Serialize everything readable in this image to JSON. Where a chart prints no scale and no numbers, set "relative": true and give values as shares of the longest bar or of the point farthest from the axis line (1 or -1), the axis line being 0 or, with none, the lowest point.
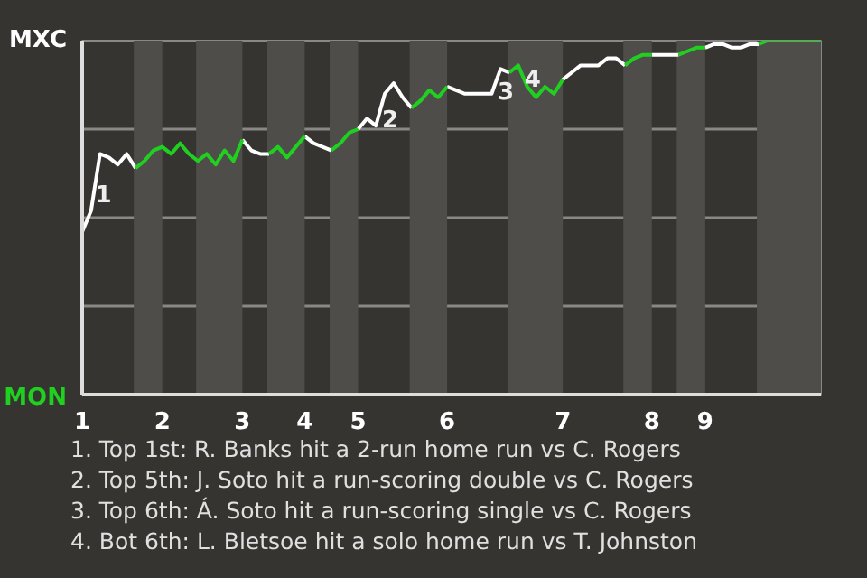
{
  "chart_data": {
    "type": "line",
    "relative": true,
    "grid": "y",
    "line_style": "solid",
    "categories": [
      "1",
      null,
      null,
      null,
      null,
      null,
      null,
      null,
      null,
      "2",
      null,
      null,
      null,
      null,
      null,
      null,
      null,
      null,
      "3",
      null,
      null,
      null,
      null,
      null,
      null,
      "4",
      null,
      null,
      null,
      null,
      null,
      "5",
      null,
      null,
      null,
      null,
      null,
      null,
      null,
      null,
      null,
      "6",
      null,
      null,
      null,
      null,
      null,
      null,
      null,
      null,
      null,
      null,
      null,
      null,
      "7",
      null,
      null,
      null,
      null,
      null,
      null,
      null,
      null,
      null,
      "8",
      null,
      null,
      null,
      null,
      null,
      "9",
      null,
      null,
      null,
      null,
      null,
      null,
      null,
      null,
      null,
      null,
      null,
      null,
      null
    ],
    "series": [
      {
        "color": "#ffffff",
        "values": [
          0.46,
          0.52,
          0.68,
          0.67,
          0.65,
          0.68,
          0.64,
          null,
          null,
          null,
          null,
          null,
          null,
          null,
          null,
          null,
          null,
          null,
          0.72,
          0.69,
          0.68,
          0.68,
          null,
          null,
          null,
          0.73,
          0.71,
          0.7,
          0.69,
          null,
          null,
          0.75,
          0.78,
          0.76,
          0.85,
          0.88,
          0.84,
          0.81,
          null,
          null,
          null,
          0.87,
          0.86,
          0.85,
          0.85,
          0.85,
          0.85,
          0.92,
          0.91,
          null,
          null,
          null,
          null,
          null,
          0.89,
          0.91,
          0.93,
          0.93,
          0.93,
          0.95,
          0.95,
          0.93,
          null,
          null,
          0.96,
          0.96,
          0.96,
          0.96,
          null,
          null,
          0.98,
          0.99,
          0.99,
          0.98,
          0.98,
          0.99,
          0.99,
          null,
          null,
          null,
          null,
          null,
          null,
          null
        ]
      },
      {
        "color": "#20d020",
        "values": [
          null,
          null,
          null,
          null,
          null,
          null,
          0.64,
          0.66,
          0.69,
          0.7,
          0.68,
          0.71,
          0.68,
          0.66,
          0.68,
          0.65,
          0.69,
          0.66,
          0.72,
          null,
          null,
          0.68,
          0.7,
          0.67,
          0.7,
          0.73,
          null,
          null,
          0.69,
          0.71,
          0.74,
          0.75,
          null,
          null,
          null,
          null,
          null,
          0.81,
          0.83,
          0.86,
          0.84,
          0.87,
          null,
          null,
          null,
          null,
          null,
          null,
          0.91,
          0.93,
          0.87,
          0.84,
          0.87,
          0.85,
          0.89,
          null,
          null,
          null,
          null,
          null,
          null,
          0.93,
          0.95,
          0.96,
          0.96,
          null,
          null,
          0.96,
          0.97,
          0.98,
          0.98,
          null,
          null,
          null,
          null,
          null,
          0.99,
          1,
          1,
          1,
          1,
          1,
          1,
          1
        ]
      }
    ],
    "annotations": [
      "MXC",
      "MON",
      "1",
      "2",
      "3",
      "4",
      "1. Top 1st: R. Banks hit a 2-run home run vs C. Rogers",
      "2. Top 5th: J. Soto hit a run-scoring double vs C. Rogers",
      "3. Top 6th: Á. Soto hit a run-scoring single vs C. Rogers",
      "4. Bot 6th: L. Bletsoe hit a solo home run vs T. Johnston"
    ]
  }
}
